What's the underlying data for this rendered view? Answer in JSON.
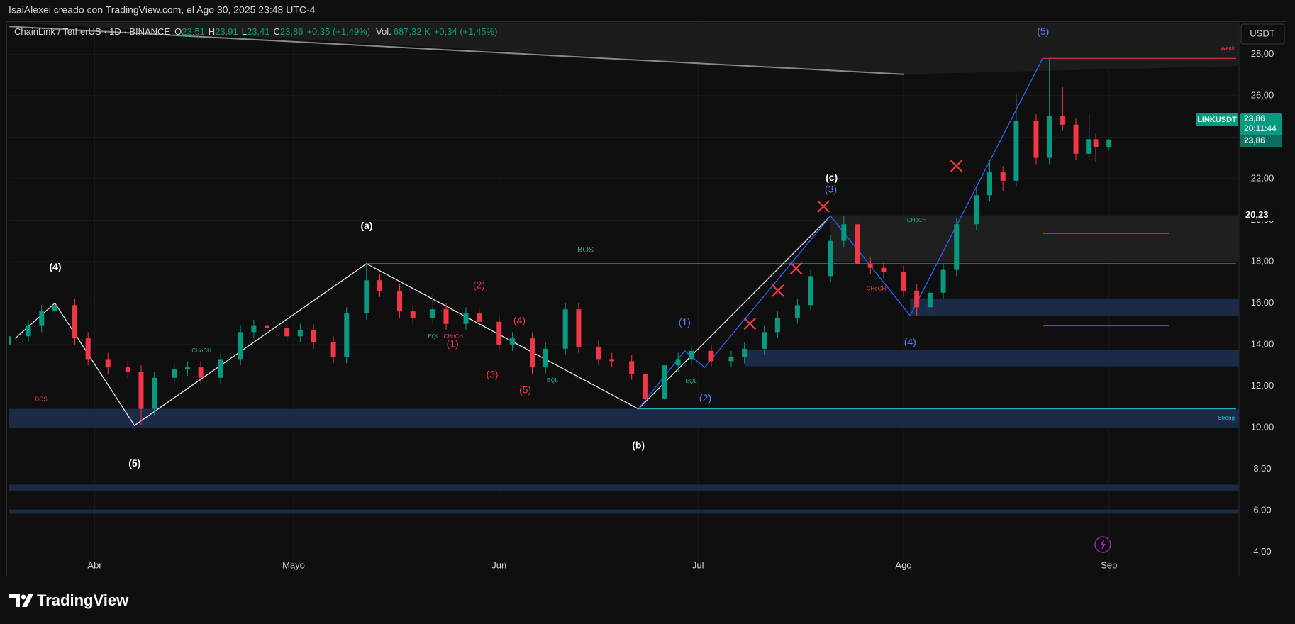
{
  "chart_data": {
    "type": "candlestick",
    "credit": "IsaiAlexei creado con TradingView.com, el Ago 30, 2025 23:48 UTC-4",
    "legend": {
      "symbol": "ChainLink / TetherUS · 1D · BINANCE",
      "fields": [
        {
          "key": "O",
          "value": "23,51"
        },
        {
          "key": "H",
          "value": "23,91"
        },
        {
          "key": "L",
          "value": "23,41"
        },
        {
          "key": "C",
          "value": "23,86"
        }
      ],
      "change": "+0,35 (+1,49%)",
      "volume_label": "Vol.",
      "volume": "687,32 K",
      "volume_change": "+0,34 (+1,45%)"
    },
    "currency": "USDT",
    "brand": "TradingView",
    "up_color": "#089981",
    "down_color": "#f23645",
    "xlim": [
      0,
      185.6
    ],
    "xticks": [
      {
        "value": 13,
        "label": "Abr"
      },
      {
        "value": 43,
        "label": "Mayo"
      },
      {
        "value": 74,
        "label": "Jun"
      },
      {
        "value": 104,
        "label": "Jul"
      },
      {
        "value": 135,
        "label": "Ago"
      },
      {
        "value": 166,
        "label": "Sep"
      }
    ],
    "ylim": [
      2.89,
      29.55
    ],
    "yticks": [
      {
        "value": 4,
        "label": "4,00"
      },
      {
        "value": 6,
        "label": "6,00"
      },
      {
        "value": 8,
        "label": "8,00"
      },
      {
        "value": 10,
        "label": "10,00"
      },
      {
        "value": 12,
        "label": "12,00"
      },
      {
        "value": 14,
        "label": "14,00"
      },
      {
        "value": 16,
        "label": "16,00"
      },
      {
        "value": 18,
        "label": "18,00"
      },
      {
        "value": 20,
        "label": "20,00"
      },
      {
        "value": 22,
        "label": "22,00"
      },
      {
        "value": 24,
        "label": "24,00"
      },
      {
        "value": 26,
        "label": "26,00"
      },
      {
        "value": 28,
        "label": "28,00"
      }
    ],
    "grid": true,
    "candles": {
      "x": [
        0,
        3,
        5,
        7,
        10,
        12,
        15,
        18,
        20,
        22,
        25,
        27,
        29,
        32,
        35,
        37,
        39,
        42,
        44,
        46,
        49,
        51,
        54,
        56,
        59,
        61,
        64,
        66,
        69,
        71,
        74,
        76,
        79,
        81,
        84,
        86,
        89,
        91,
        94,
        96,
        99,
        101,
        103,
        106,
        109,
        111,
        114,
        116,
        119,
        121,
        124,
        126,
        128,
        130,
        132,
        135,
        137,
        139,
        141,
        143,
        146,
        148,
        150,
        152,
        155,
        157,
        159,
        161,
        163,
        164,
        166
      ],
      "open": [
        14.0,
        14.4,
        14.9,
        15.6,
        15.9,
        14.3,
        13.3,
        12.9,
        12.7,
        10.9,
        12.4,
        12.8,
        12.9,
        12.4,
        13.3,
        14.6,
        14.9,
        14.8,
        14.4,
        14.7,
        14.1,
        13.4,
        15.5,
        17.1,
        16.6,
        15.6,
        15.3,
        15.7,
        15.0,
        15.5,
        15.1,
        14.0,
        14.3,
        12.9,
        13.8,
        15.7,
        13.9,
        13.3,
        13.2,
        12.6,
        11.4,
        13.0,
        13.3,
        13.7,
        13.2,
        13.4,
        13.8,
        14.6,
        15.3,
        15.9,
        17.3,
        19.0,
        19.8,
        17.9,
        17.7,
        17.5,
        16.6,
        15.8,
        16.5,
        17.6,
        19.8,
        21.2,
        22.3,
        21.9,
        24.8,
        23.0,
        25.0,
        24.6,
        23.2,
        23.9,
        23.51
      ],
      "high": [
        14.7,
        15.2,
        15.9,
        16.0,
        16.2,
        14.6,
        13.6,
        13.2,
        13.0,
        12.7,
        13.1,
        13.2,
        13.2,
        13.6,
        14.9,
        15.2,
        15.2,
        15.1,
        15.0,
        15.0,
        14.4,
        15.8,
        17.9,
        17.4,
        16.9,
        15.9,
        16.4,
        16.0,
        15.8,
        15.8,
        15.4,
        14.6,
        14.6,
        14.1,
        16.0,
        16.0,
        14.2,
        13.6,
        13.5,
        12.9,
        13.3,
        13.6,
        14.0,
        14.0,
        13.7,
        14.1,
        14.9,
        15.6,
        16.2,
        17.6,
        19.3,
        20.2,
        20.1,
        18.2,
        18.0,
        17.8,
        16.9,
        16.8,
        17.9,
        20.1,
        21.5,
        22.9,
        22.6,
        26.1,
        25.1,
        27.8,
        26.4,
        24.9,
        25.1,
        24.2,
        23.91
      ],
      "low": [
        13.7,
        14.1,
        14.6,
        15.3,
        14.0,
        13.0,
        12.6,
        12.4,
        10.1,
        10.6,
        12.1,
        12.5,
        12.1,
        12.1,
        13.0,
        14.3,
        14.5,
        14.1,
        14.1,
        13.8,
        13.1,
        13.1,
        15.2,
        16.3,
        15.3,
        15.0,
        15.0,
        14.7,
        14.7,
        14.8,
        13.7,
        13.7,
        12.6,
        12.6,
        13.5,
        13.6,
        13.0,
        12.9,
        12.3,
        10.9,
        11.1,
        12.7,
        13.0,
        12.9,
        12.9,
        13.1,
        13.5,
        14.3,
        15.0,
        15.6,
        17.0,
        18.7,
        17.6,
        17.4,
        17.2,
        16.3,
        15.4,
        15.5,
        16.2,
        17.3,
        19.5,
        20.9,
        21.4,
        21.6,
        22.7,
        22.7,
        24.3,
        22.9,
        22.9,
        22.8,
        23.41
      ],
      "close": [
        14.4,
        14.9,
        15.6,
        15.9,
        14.3,
        13.3,
        12.9,
        12.7,
        10.9,
        12.4,
        12.8,
        12.9,
        12.4,
        13.3,
        14.6,
        14.9,
        14.8,
        14.4,
        14.7,
        14.1,
        13.4,
        15.5,
        17.1,
        16.6,
        15.6,
        15.3,
        15.7,
        15.0,
        15.5,
        15.1,
        14.0,
        14.3,
        12.9,
        13.8,
        15.7,
        13.9,
        13.3,
        13.2,
        12.6,
        11.4,
        13.0,
        13.3,
        13.7,
        13.2,
        13.4,
        13.8,
        14.6,
        15.3,
        15.9,
        17.3,
        19.0,
        19.8,
        17.9,
        17.7,
        17.5,
        16.6,
        15.8,
        16.5,
        17.6,
        19.8,
        21.2,
        22.3,
        21.9,
        24.8,
        23.0,
        25.0,
        24.6,
        23.2,
        23.9,
        23.51,
        23.86
      ]
    },
    "zones": [
      {
        "from": 0,
        "low": 10.0,
        "high": 10.9,
        "color": "#1b2a47"
      },
      {
        "from": 0,
        "low": 6.95,
        "high": 7.25,
        "color": "#1b2a47"
      },
      {
        "from": 0,
        "low": 5.85,
        "high": 6.05,
        "color": "#1b2a47"
      },
      {
        "from": 111,
        "low": 12.95,
        "high": 13.75,
        "color": "#1b2a47"
      },
      {
        "from": 136,
        "low": 15.4,
        "high": 16.2,
        "color": "#1b2a47"
      },
      {
        "from": 124,
        "low": 18.0,
        "high": 20.23,
        "color": "#1f1f1f"
      }
    ],
    "levels": [
      {
        "value": 27.8,
        "from": 156,
        "color": "#f23645",
        "label": "Weak"
      },
      {
        "value": 10.9,
        "from": 95,
        "color": "#26c6da",
        "label": "Strong"
      },
      {
        "value": 17.9,
        "from": 54,
        "color": "#26a69a"
      },
      {
        "value": 19.35,
        "from": 156,
        "to": 175,
        "color": "#2962ff"
      },
      {
        "value": 17.4,
        "from": 156,
        "to": 175,
        "color": "#2962ff"
      },
      {
        "value": 14.9,
        "from": 156,
        "to": 175,
        "color": "#2962ff"
      },
      {
        "value": 13.4,
        "from": 156,
        "to": 175,
        "color": "#2962ff"
      }
    ],
    "waves": [
      {
        "color": "#e6e6e6",
        "x": [
          1,
          7,
          19,
          54,
          95,
          124
        ],
        "y": [
          14.3,
          16.0,
          10.1,
          17.9,
          10.9,
          20.2
        ]
      },
      {
        "color": "#2962ff",
        "x": [
          95,
          102,
          105,
          124,
          136,
          156
        ],
        "y": [
          10.9,
          13.7,
          12.9,
          20.2,
          15.4,
          27.8
        ]
      }
    ],
    "wave_labels": [
      {
        "text": "(4)",
        "color": "#ffffff"
      },
      {
        "text": "(5)",
        "color": "#ffffff"
      },
      {
        "text": "(a)",
        "color": "#ffffff"
      },
      {
        "text": "(b)",
        "color": "#ffffff"
      },
      {
        "text": "(c)",
        "color": "#ffffff"
      },
      {
        "text": "(1)",
        "color": "#5b7cff"
      },
      {
        "text": "(2)",
        "color": "#5b7cff"
      },
      {
        "text": "(3)",
        "color": "#5b7cff"
      },
      {
        "text": "(4)",
        "color": "#5b7cff"
      },
      {
        "text": "(5)",
        "color": "#5b7cff"
      },
      {
        "text": "(1)",
        "color": "#f23645"
      },
      {
        "text": "(2)",
        "color": "#f23645"
      },
      {
        "text": "(3)",
        "color": "#f23645"
      },
      {
        "text": "(4)",
        "color": "#f23645"
      },
      {
        "text": "(5)",
        "color": "#f23645"
      }
    ],
    "annotations": [
      {
        "text": "BOS",
        "color": "#26a69a"
      },
      {
        "text": "CHoCH",
        "color": "#26a69a"
      },
      {
        "text": "CHoCH",
        "color": "#26a69a"
      },
      {
        "text": "CHoCH",
        "color": "#f23645"
      },
      {
        "text": "EQL",
        "color": "#26a69a"
      },
      {
        "text": "EQL",
        "color": "#26a69a"
      },
      {
        "text": "EQL",
        "color": "#26a69a"
      },
      {
        "text": "BOS",
        "color": "#f23645"
      },
      {
        "text": "CHoCH",
        "color": "#f23645"
      }
    ],
    "price_tag": {
      "symbol": "LINKUSDT",
      "price": {
        "value": 23.86,
        "label": "23,86"
      },
      "countdown": "20:11:44",
      "last": "23,86"
    },
    "level_tag": {
      "value": 20.23,
      "label": "20,23"
    }
  }
}
